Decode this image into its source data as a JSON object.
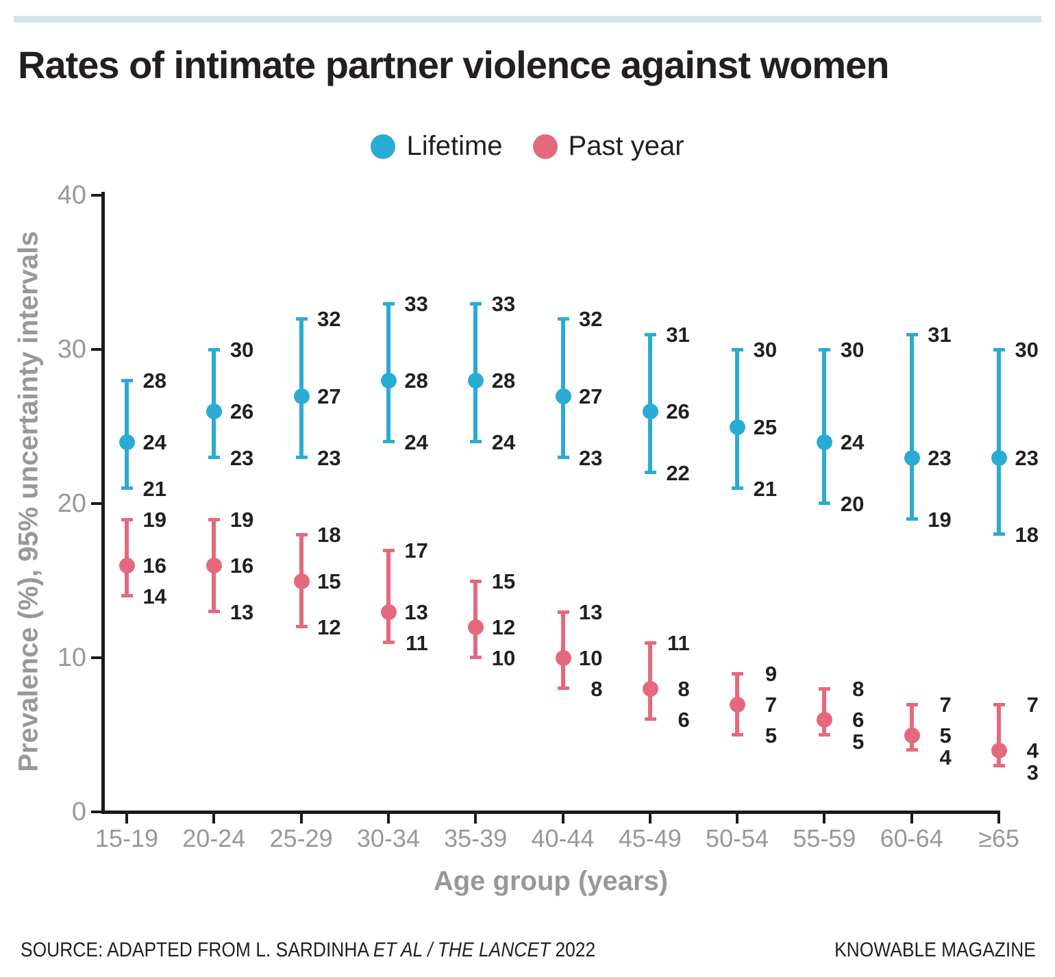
{
  "topbar": {
    "color": "#d4e4e8"
  },
  "title": "Rates of intimate partner violence against women",
  "chart_data": {
    "type": "scatter",
    "subtype": "point-estimates-with-95pct-uncertainty-intervals",
    "categories": [
      "15-19",
      "20-24",
      "25-29",
      "30-34",
      "35-39",
      "40-44",
      "45-49",
      "50-54",
      "55-59",
      "60-64",
      "≥65"
    ],
    "series": [
      {
        "name": "Lifetime",
        "color": "#29abd4",
        "values": [
          24,
          26,
          27,
          28,
          28,
          27,
          26,
          25,
          24,
          23,
          23
        ],
        "lower": [
          21,
          23,
          23,
          24,
          24,
          23,
          22,
          21,
          20,
          19,
          18
        ],
        "upper": [
          28,
          30,
          32,
          33,
          33,
          32,
          31,
          30,
          30,
          31,
          30
        ]
      },
      {
        "name": "Past year",
        "color": "#e5697e",
        "values": [
          16,
          16,
          15,
          13,
          12,
          10,
          8,
          7,
          6,
          5,
          4
        ],
        "lower": [
          14,
          13,
          12,
          11,
          10,
          8,
          6,
          5,
          5,
          4,
          3
        ],
        "upper": [
          19,
          19,
          18,
          17,
          15,
          13,
          11,
          9,
          8,
          7,
          7
        ]
      }
    ],
    "xlabel": "Age group (years)",
    "ylabel": "Prevalence (%), 95% uncertainty intervals",
    "yticks": [
      0,
      10,
      20,
      30,
      40
    ],
    "ylim": [
      0,
      40
    ],
    "legend_position": "top",
    "grid": false,
    "axis_color": "#1a1a1a",
    "axis_text_color": "#98989a",
    "value_label_color": "#231f20"
  },
  "footer": {
    "source_prefix": "SOURCE: ADAPTED FROM L. SARDINHA ",
    "source_italic": "ET AL / THE LANCET",
    "source_suffix": " 2022",
    "credit": "KNOWABLE MAGAZINE"
  }
}
